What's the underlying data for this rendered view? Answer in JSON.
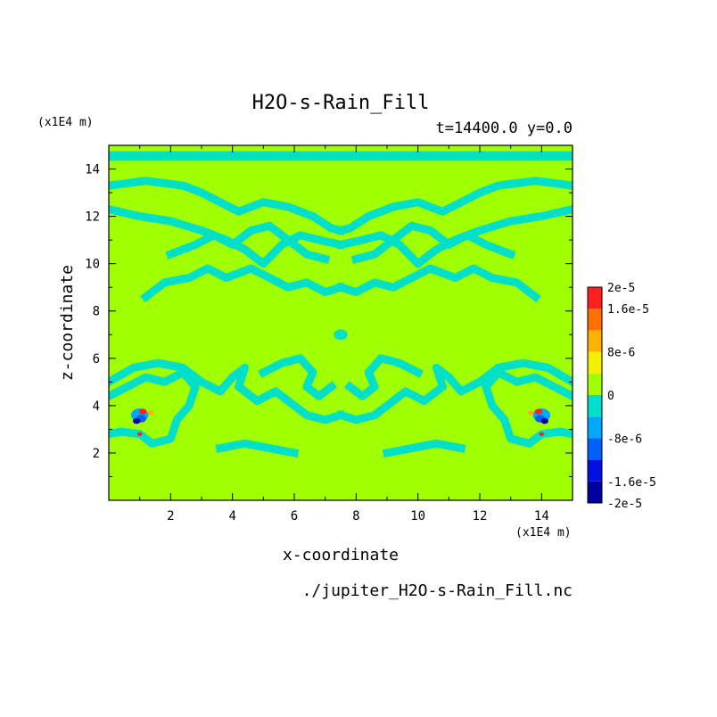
{
  "chart_data": {
    "type": "heatmap",
    "title": "H2O-s-Rain_Fill",
    "subtitle": "t=14400.0 y=0.0",
    "xlabel": "x-coordinate",
    "ylabel": "z-coordinate",
    "x_unit": "(x1E4 m)",
    "y_unit": "(x1E4 m)",
    "source_file": "./jupiter_H2O-s-Rain_Fill.nc",
    "xlim": [
      0,
      15
    ],
    "ylim": [
      0,
      15
    ],
    "x_ticks": [
      "2",
      "4",
      "6",
      "8",
      "10",
      "12",
      "14"
    ],
    "x_tick_values": [
      2,
      4,
      6,
      8,
      10,
      12,
      14
    ],
    "y_ticks": [
      "2",
      "4",
      "6",
      "8",
      "10",
      "12",
      "14"
    ],
    "y_tick_values": [
      2,
      4,
      6,
      8,
      10,
      12,
      14
    ],
    "colorbar": {
      "min": -2e-05,
      "max": 2e-05,
      "levels": [
        -2e-05,
        -1.6e-05,
        -1.2e-05,
        -8e-06,
        -4e-06,
        0,
        4e-06,
        8e-06,
        1.2e-05,
        1.6e-05,
        2e-05
      ],
      "colors": [
        "#0000a0",
        "#0010e0",
        "#0060ff",
        "#00a8ff",
        "#00e0c8",
        "#a0ff00",
        "#f0f000",
        "#ffb000",
        "#ff7000",
        "#ff2020"
      ],
      "labels": [
        {
          "text": "2e-5",
          "value": 2e-05
        },
        {
          "text": "1.6e-5",
          "value": 1.6e-05
        },
        {
          "text": "8e-6",
          "value": 8e-06
        },
        {
          "text": "0",
          "value": 0
        },
        {
          "text": "-8e-6",
          "value": -8e-06
        },
        {
          "text": "-1.6e-5",
          "value": -1.6e-05
        },
        {
          "text": "-2e-5",
          "value": -2e-05
        }
      ]
    },
    "background_level": 0,
    "background_color": "#a0ff00",
    "negative_band_color": "#00e0c8",
    "top_band": {
      "z_min": 14.35,
      "z_max": 14.75,
      "color": "#00e0c8"
    },
    "bands": [
      {
        "level": "negative_small",
        "pts": [
          [
            0,
            13.3
          ],
          [
            1.2,
            13.5
          ],
          [
            2.4,
            13.3
          ],
          [
            3.0,
            13.0
          ],
          [
            3.6,
            12.6
          ],
          [
            4.2,
            12.2
          ],
          [
            5.0,
            12.6
          ],
          [
            5.8,
            12.4
          ],
          [
            6.6,
            12.0
          ],
          [
            7.2,
            11.5
          ],
          [
            7.5,
            11.4
          ]
        ]
      },
      {
        "level": "negative_small",
        "pts": [
          [
            15,
            13.3
          ],
          [
            13.8,
            13.5
          ],
          [
            12.6,
            13.3
          ],
          [
            12.0,
            13.0
          ],
          [
            11.4,
            12.6
          ],
          [
            10.8,
            12.2
          ],
          [
            10.0,
            12.6
          ],
          [
            9.2,
            12.4
          ],
          [
            8.4,
            12.0
          ],
          [
            7.8,
            11.5
          ],
          [
            7.5,
            11.4
          ]
        ]
      },
      {
        "level": "negative_small",
        "pts": [
          [
            0,
            12.3
          ],
          [
            1.0,
            12.0
          ],
          [
            2.0,
            11.8
          ],
          [
            3.0,
            11.4
          ],
          [
            3.8,
            11.0
          ],
          [
            4.4,
            10.6
          ],
          [
            5.0,
            10.0
          ],
          [
            5.6,
            10.8
          ],
          [
            6.2,
            11.2
          ],
          [
            6.8,
            11.0
          ],
          [
            7.5,
            10.8
          ]
        ]
      },
      {
        "level": "negative_small",
        "pts": [
          [
            15,
            12.3
          ],
          [
            14.0,
            12.0
          ],
          [
            13.0,
            11.8
          ],
          [
            12.0,
            11.4
          ],
          [
            11.2,
            11.0
          ],
          [
            10.6,
            10.6
          ],
          [
            10.0,
            10.0
          ],
          [
            9.4,
            10.8
          ],
          [
            8.8,
            11.2
          ],
          [
            8.2,
            11.0
          ],
          [
            7.5,
            10.8
          ]
        ]
      },
      {
        "level": "negative_small",
        "pts": [
          [
            1.2,
            8.6
          ],
          [
            1.8,
            9.2
          ],
          [
            2.6,
            9.4
          ],
          [
            3.2,
            9.8
          ],
          [
            3.8,
            9.4
          ],
          [
            4.6,
            9.8
          ],
          [
            5.2,
            9.4
          ],
          [
            5.8,
            9.0
          ],
          [
            6.4,
            9.2
          ],
          [
            7.0,
            8.8
          ],
          [
            7.5,
            9.0
          ]
        ]
      },
      {
        "level": "negative_small",
        "pts": [
          [
            13.8,
            8.6
          ],
          [
            13.2,
            9.2
          ],
          [
            12.4,
            9.4
          ],
          [
            11.8,
            9.8
          ],
          [
            11.2,
            9.4
          ],
          [
            10.4,
            9.8
          ],
          [
            9.8,
            9.4
          ],
          [
            9.2,
            9.0
          ],
          [
            8.6,
            9.2
          ],
          [
            8.0,
            8.8
          ],
          [
            7.5,
            9.0
          ]
        ]
      },
      {
        "level": "negative_small",
        "pts": [
          [
            2.0,
            10.4
          ],
          [
            2.8,
            10.8
          ],
          [
            3.4,
            11.2
          ],
          [
            4.0,
            10.8
          ],
          [
            4.6,
            11.4
          ],
          [
            5.2,
            11.6
          ],
          [
            5.8,
            11.0
          ],
          [
            6.4,
            10.4
          ],
          [
            7.0,
            10.2
          ]
        ]
      },
      {
        "level": "negative_small",
        "pts": [
          [
            13.0,
            10.4
          ],
          [
            12.2,
            10.8
          ],
          [
            11.6,
            11.2
          ],
          [
            11.0,
            10.8
          ],
          [
            10.4,
            11.4
          ],
          [
            9.8,
            11.6
          ],
          [
            9.2,
            11.0
          ],
          [
            8.6,
            10.4
          ],
          [
            8.0,
            10.2
          ]
        ]
      },
      {
        "level": "negative_small",
        "pts": [
          [
            0,
            4.4
          ],
          [
            0.6,
            4.8
          ],
          [
            1.2,
            5.2
          ],
          [
            1.8,
            5.0
          ],
          [
            2.4,
            5.4
          ],
          [
            2.8,
            4.8
          ],
          [
            2.6,
            4.0
          ],
          [
            2.2,
            3.4
          ],
          [
            2.0,
            2.6
          ],
          [
            1.4,
            2.4
          ],
          [
            1.0,
            2.8
          ],
          [
            0.4,
            2.9
          ],
          [
            0,
            2.8
          ]
        ]
      },
      {
        "level": "negative_small",
        "pts": [
          [
            15,
            4.4
          ],
          [
            14.4,
            4.8
          ],
          [
            13.8,
            5.2
          ],
          [
            13.2,
            5.0
          ],
          [
            12.6,
            5.4
          ],
          [
            12.2,
            4.8
          ],
          [
            12.4,
            4.0
          ],
          [
            12.8,
            3.4
          ],
          [
            13.0,
            2.6
          ],
          [
            13.6,
            2.4
          ],
          [
            14.0,
            2.8
          ],
          [
            14.6,
            2.9
          ],
          [
            15,
            2.8
          ]
        ]
      },
      {
        "level": "negative_small",
        "pts": [
          [
            0,
            5.0
          ],
          [
            0.8,
            5.6
          ],
          [
            1.6,
            5.8
          ],
          [
            2.4,
            5.6
          ],
          [
            3.0,
            5.0
          ],
          [
            3.6,
            4.6
          ],
          [
            4.0,
            5.2
          ],
          [
            4.4,
            5.6
          ],
          [
            4.2,
            4.8
          ],
          [
            4.8,
            4.2
          ],
          [
            5.4,
            4.6
          ],
          [
            6.0,
            4.0
          ],
          [
            6.4,
            3.6
          ],
          [
            7.0,
            3.4
          ],
          [
            7.5,
            3.6
          ]
        ]
      },
      {
        "level": "negative_small",
        "pts": [
          [
            15,
            5.0
          ],
          [
            14.2,
            5.6
          ],
          [
            13.4,
            5.8
          ],
          [
            12.6,
            5.6
          ],
          [
            12.0,
            5.0
          ],
          [
            11.4,
            4.6
          ],
          [
            11.0,
            5.2
          ],
          [
            10.6,
            5.6
          ],
          [
            10.8,
            4.8
          ],
          [
            10.2,
            4.2
          ],
          [
            9.6,
            4.6
          ],
          [
            9.0,
            4.0
          ],
          [
            8.6,
            3.6
          ],
          [
            8.0,
            3.4
          ],
          [
            7.5,
            3.6
          ]
        ]
      },
      {
        "level": "negative_small",
        "pts": [
          [
            5.0,
            5.4
          ],
          [
            5.6,
            5.8
          ],
          [
            6.2,
            6.0
          ],
          [
            6.6,
            5.4
          ],
          [
            6.4,
            4.8
          ],
          [
            6.8,
            4.4
          ],
          [
            7.2,
            4.8
          ]
        ]
      },
      {
        "level": "negative_small",
        "pts": [
          [
            10.0,
            5.4
          ],
          [
            9.4,
            5.8
          ],
          [
            8.8,
            6.0
          ],
          [
            8.4,
            5.4
          ],
          [
            8.6,
            4.8
          ],
          [
            8.2,
            4.4
          ],
          [
            7.8,
            4.8
          ]
        ]
      },
      {
        "level": "negative_small",
        "pts": [
          [
            3.6,
            2.2
          ],
          [
            4.4,
            2.4
          ],
          [
            5.2,
            2.2
          ],
          [
            6.0,
            2.0
          ]
        ]
      },
      {
        "level": "negative_small",
        "pts": [
          [
            11.4,
            2.2
          ],
          [
            10.6,
            2.4
          ],
          [
            9.8,
            2.2
          ],
          [
            9.0,
            2.0
          ]
        ]
      }
    ],
    "spots": [
      {
        "x": 7.5,
        "z": 7.0,
        "r": 0.22,
        "level": "negative_small"
      },
      {
        "x": 1.0,
        "z": 3.6,
        "r": 0.28,
        "level": "negative_mid"
      },
      {
        "x": 1.05,
        "z": 3.45,
        "r": 0.16,
        "level": "negative_large"
      },
      {
        "x": 0.9,
        "z": 3.35,
        "r": 0.12,
        "level": "negative_max"
      },
      {
        "x": 1.1,
        "z": 3.75,
        "r": 0.12,
        "level": "positive_max"
      },
      {
        "x": 1.35,
        "z": 3.7,
        "r": 0.1,
        "level": "positive_mid"
      },
      {
        "x": 1.0,
        "z": 2.8,
        "r": 0.08,
        "level": "positive_max"
      },
      {
        "x": 14.0,
        "z": 3.6,
        "r": 0.28,
        "level": "negative_mid"
      },
      {
        "x": 13.95,
        "z": 3.45,
        "r": 0.16,
        "level": "negative_large"
      },
      {
        "x": 14.1,
        "z": 3.35,
        "r": 0.12,
        "level": "negative_max"
      },
      {
        "x": 13.9,
        "z": 3.75,
        "r": 0.12,
        "level": "positive_max"
      },
      {
        "x": 13.65,
        "z": 3.7,
        "r": 0.1,
        "level": "positive_mid"
      },
      {
        "x": 14.0,
        "z": 2.8,
        "r": 0.08,
        "level": "positive_max"
      }
    ],
    "level_colors": {
      "negative_small": "#00e0c8",
      "negative_mid": "#00a8ff",
      "negative_large": "#0060ff",
      "negative_max": "#0000a0",
      "positive_mid": "#ffb000",
      "positive_max": "#ff2020"
    }
  }
}
